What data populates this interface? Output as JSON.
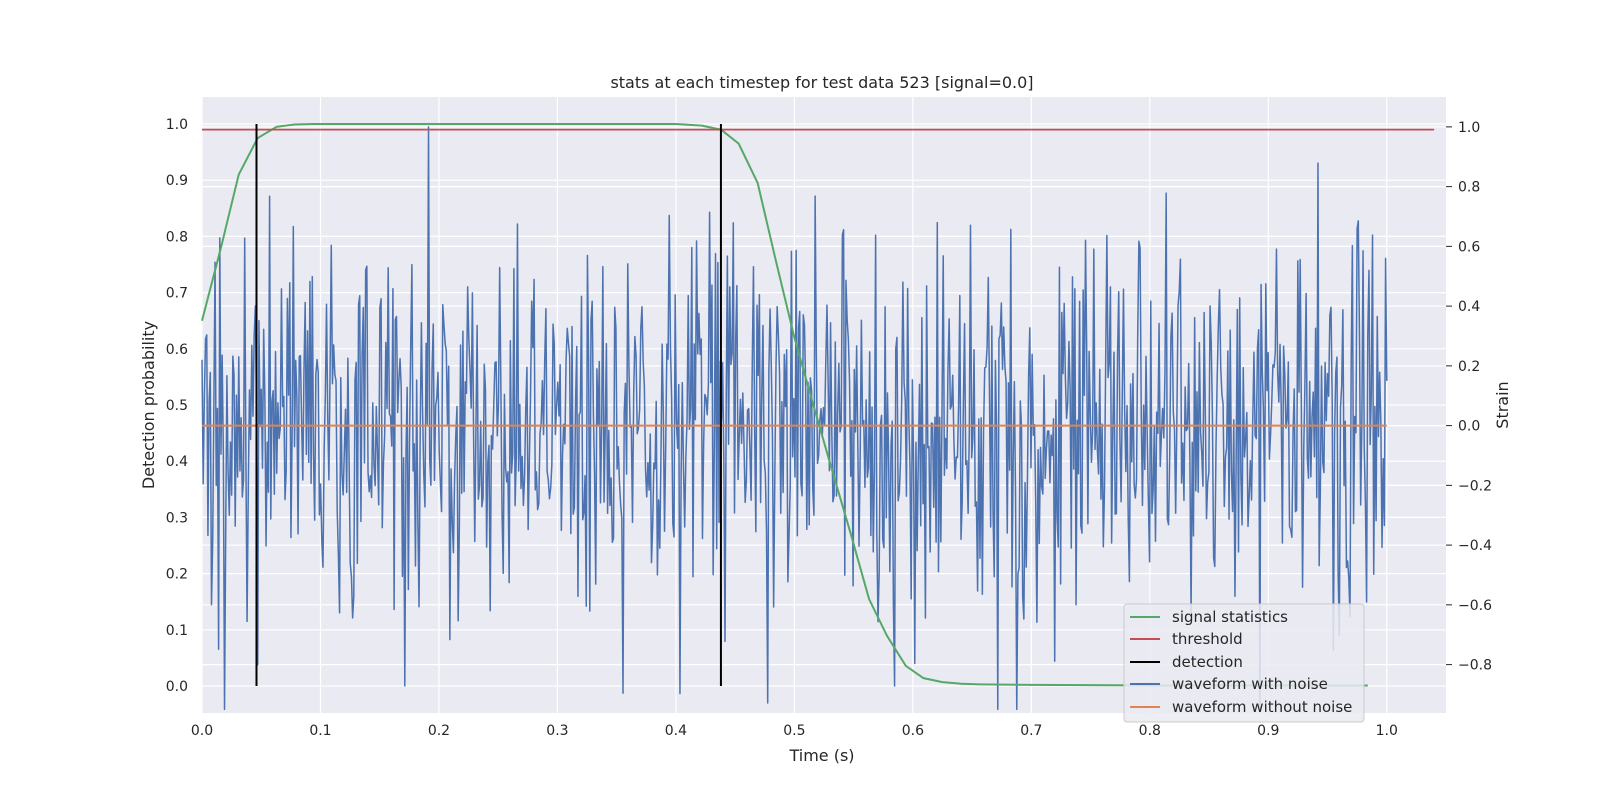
{
  "chart_data": {
    "type": "line",
    "title": "stats at each timestep for test data 523 [signal=0.0]",
    "xlabel": "Time (s)",
    "ylabel": "Detection probability",
    "y2label": "Strain",
    "xlim": [
      0.0,
      1.05
    ],
    "ylim": [
      -0.048,
      1.048
    ],
    "y2lim": [
      -0.962,
      1.1
    ],
    "grid": true,
    "legend_position": "bottom-right",
    "x_ticks": [
      "0.0",
      "0.1",
      "0.2",
      "0.3",
      "0.4",
      "0.5",
      "0.6",
      "0.7",
      "0.8",
      "0.9",
      "1.0"
    ],
    "y_ticks": [
      "0.0",
      "0.1",
      "0.2",
      "0.3",
      "0.4",
      "0.5",
      "0.6",
      "0.7",
      "0.8",
      "0.9",
      "1.0"
    ],
    "y2_ticks": [
      "−0.8",
      "−0.6",
      "−0.4",
      "−0.2",
      "0.0",
      "0.2",
      "0.4",
      "0.6",
      "0.8",
      "1.0"
    ],
    "series": [
      {
        "name": "signal statistics",
        "axis": "left",
        "color": "#55a868",
        "x": [
          0.0,
          0.016,
          0.031,
          0.047,
          0.063,
          0.078,
          0.094,
          0.109,
          0.125,
          0.2,
          0.3,
          0.4,
          0.422,
          0.438,
          0.453,
          0.469,
          0.484,
          0.5,
          0.516,
          0.531,
          0.547,
          0.563,
          0.578,
          0.594,
          0.609,
          0.625,
          0.641,
          0.656,
          0.7,
          0.8,
          0.9,
          0.984
        ],
        "y": [
          0.65,
          0.78,
          0.91,
          0.975,
          0.995,
          0.999,
          1.0,
          1.0,
          1.0,
          1.0,
          1.0,
          1.0,
          0.997,
          0.99,
          0.965,
          0.895,
          0.76,
          0.62,
          0.5,
          0.39,
          0.275,
          0.155,
          0.09,
          0.036,
          0.014,
          0.007,
          0.004,
          0.003,
          0.002,
          0.001,
          0.001,
          0.001
        ]
      },
      {
        "name": "threshold",
        "axis": "left",
        "color": "#c44e52",
        "x": [
          0.0,
          1.04
        ],
        "y": [
          0.99,
          0.99
        ]
      },
      {
        "name": "detection",
        "axis": "left",
        "color": "#000000",
        "segments": [
          {
            "x": 0.046,
            "y": [
              0.0,
              1.0
            ]
          },
          {
            "x": 0.438,
            "y": [
              0.0,
              1.0
            ]
          }
        ]
      },
      {
        "name": "waveform with noise",
        "axis": "right",
        "color": "#4c72b0",
        "x_range": [
          0.0,
          1.0
        ],
        "points": 1000,
        "approx_range": [
          -0.95,
          1.0
        ]
      },
      {
        "name": "waveform without noise",
        "axis": "right",
        "color": "#dd8452",
        "x": [
          0.0,
          1.0
        ],
        "y": [
          0.0,
          0.0
        ]
      }
    ]
  }
}
